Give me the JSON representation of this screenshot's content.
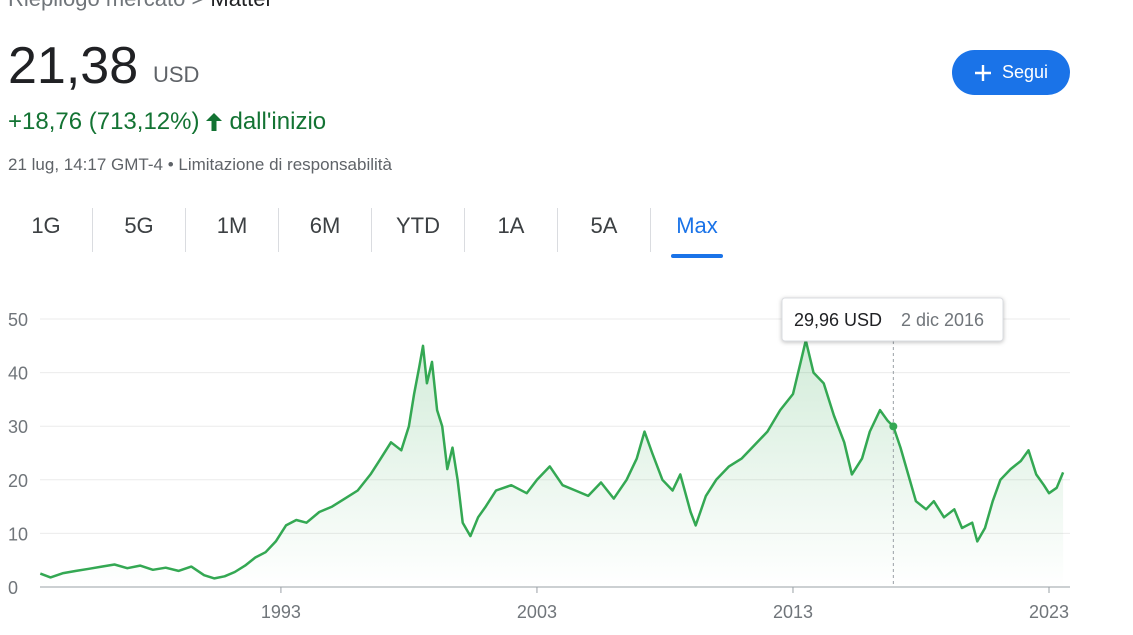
{
  "breadcrumb": {
    "parent": "Riepilogo mercato",
    "separator": ">",
    "current": "Mattel"
  },
  "quote": {
    "price": "21,38",
    "currency": "USD",
    "change": "+18,76 (713,12%)",
    "period": "dall'inizio",
    "timestamp": "21 lug, 14:17 GMT-4 •",
    "disclaimer": "Limitazione di responsabilità"
  },
  "follow_button": "Segui",
  "tabs": [
    "1G",
    "5G",
    "1M",
    "6M",
    "YTD",
    "1A",
    "5A",
    "Max"
  ],
  "chart_data": {
    "type": "line",
    "color": "#34a853",
    "grid": true,
    "xlim": [
      1983.59,
      2023.82
    ],
    "xticks": [
      1993,
      2003,
      2013,
      2023
    ],
    "ylim": [
      0,
      50
    ],
    "yticks": [
      0,
      10,
      20,
      30,
      40,
      50
    ],
    "x": [
      1983.6,
      1984.0,
      1984.5,
      1985.0,
      1985.5,
      1986.0,
      1986.5,
      1987.0,
      1987.5,
      1988.0,
      1988.5,
      1989.0,
      1989.5,
      1990.0,
      1990.4,
      1990.8,
      1991.2,
      1991.6,
      1992.0,
      1992.4,
      1992.8,
      1993.2,
      1993.6,
      1994.0,
      1994.5,
      1995.0,
      1995.5,
      1996.0,
      1996.5,
      1996.9,
      1997.3,
      1997.7,
      1998.0,
      1998.2,
      1998.4,
      1998.55,
      1998.7,
      1998.9,
      1999.1,
      1999.3,
      1999.5,
      1999.7,
      1999.9,
      2000.1,
      2000.4,
      2000.7,
      2001.0,
      2001.4,
      2002.0,
      2002.6,
      2003.0,
      2003.5,
      2004.0,
      2004.5,
      2005.0,
      2005.5,
      2006.0,
      2006.5,
      2006.9,
      2007.2,
      2007.5,
      2007.9,
      2008.3,
      2008.6,
      2009.0,
      2009.2,
      2009.6,
      2010.0,
      2010.5,
      2011.0,
      2011.5,
      2012.0,
      2012.5,
      2013.0,
      2013.3,
      2013.5,
      2013.8,
      2014.2,
      2014.6,
      2015.0,
      2015.3,
      2015.7,
      2016.0,
      2016.4,
      2016.7,
      2016.92,
      2017.2,
      2017.5,
      2017.8,
      2018.2,
      2018.5,
      2018.9,
      2019.3,
      2019.6,
      2020.0,
      2020.2,
      2020.5,
      2020.8,
      2021.1,
      2021.5,
      2021.9,
      2022.2,
      2022.5,
      2022.8,
      2023.0,
      2023.3,
      2023.55
    ],
    "values": [
      2.5,
      1.8,
      2.6,
      3.0,
      3.4,
      3.8,
      4.2,
      3.5,
      4.0,
      3.2,
      3.6,
      3.0,
      3.8,
      2.2,
      1.6,
      2.0,
      2.8,
      4.0,
      5.5,
      6.5,
      8.5,
      11.5,
      12.5,
      12.0,
      14.0,
      15.0,
      16.5,
      18.0,
      21.0,
      24.0,
      27.0,
      25.5,
      30.0,
      36.0,
      41.0,
      45.0,
      38.0,
      42.0,
      33.0,
      30.0,
      22.0,
      26.0,
      20.0,
      12.0,
      9.5,
      13.0,
      15.0,
      18.0,
      19.0,
      17.5,
      20.0,
      22.5,
      19.0,
      18.0,
      17.0,
      19.5,
      16.5,
      20.0,
      24.0,
      29.0,
      25.0,
      20.0,
      18.0,
      21.0,
      14.0,
      11.5,
      17.0,
      20.0,
      22.5,
      24.0,
      26.5,
      29.0,
      33.0,
      36.0,
      42.0,
      46.0,
      40.0,
      38.0,
      32.0,
      27.0,
      21.0,
      24.0,
      29.0,
      33.0,
      31.0,
      29.96,
      26.0,
      21.0,
      16.0,
      14.5,
      16.0,
      13.0,
      14.5,
      11.0,
      12.0,
      8.5,
      11.0,
      16.0,
      20.0,
      22.0,
      23.5,
      25.5,
      21.0,
      19.0,
      17.5,
      18.5,
      21.38
    ],
    "tooltip": {
      "x": 2016.92,
      "value": 29.96,
      "label": "29,96 USD",
      "date": "2 dic 2016"
    }
  }
}
